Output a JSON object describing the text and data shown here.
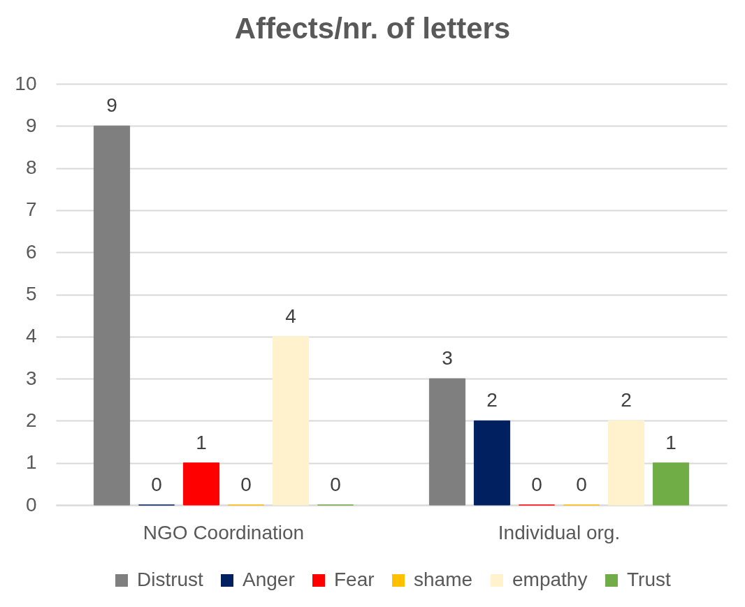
{
  "chart_data": {
    "type": "bar",
    "title": "Affects/nr. of letters",
    "categories": [
      "NGO Coordination",
      "Individual org."
    ],
    "series": [
      {
        "name": "Distrust",
        "color": "#7f7f7f",
        "values": [
          9,
          3
        ]
      },
      {
        "name": "Anger",
        "color": "#002060",
        "values": [
          0,
          2
        ]
      },
      {
        "name": "Fear",
        "color": "#ff0000",
        "values": [
          1,
          0
        ]
      },
      {
        "name": "shame",
        "color": "#ffc000",
        "values": [
          0,
          0
        ]
      },
      {
        "name": "empathy",
        "color": "#fff2cc",
        "values": [
          4,
          2
        ]
      },
      {
        "name": "Trust",
        "color": "#70ad47",
        "values": [
          0,
          1
        ]
      }
    ],
    "ylim": [
      0,
      10
    ],
    "yticks": [
      0,
      1,
      2,
      3,
      4,
      5,
      6,
      7,
      8,
      9,
      10
    ],
    "grid": "y",
    "legend": "bottom",
    "data_labels": true
  }
}
